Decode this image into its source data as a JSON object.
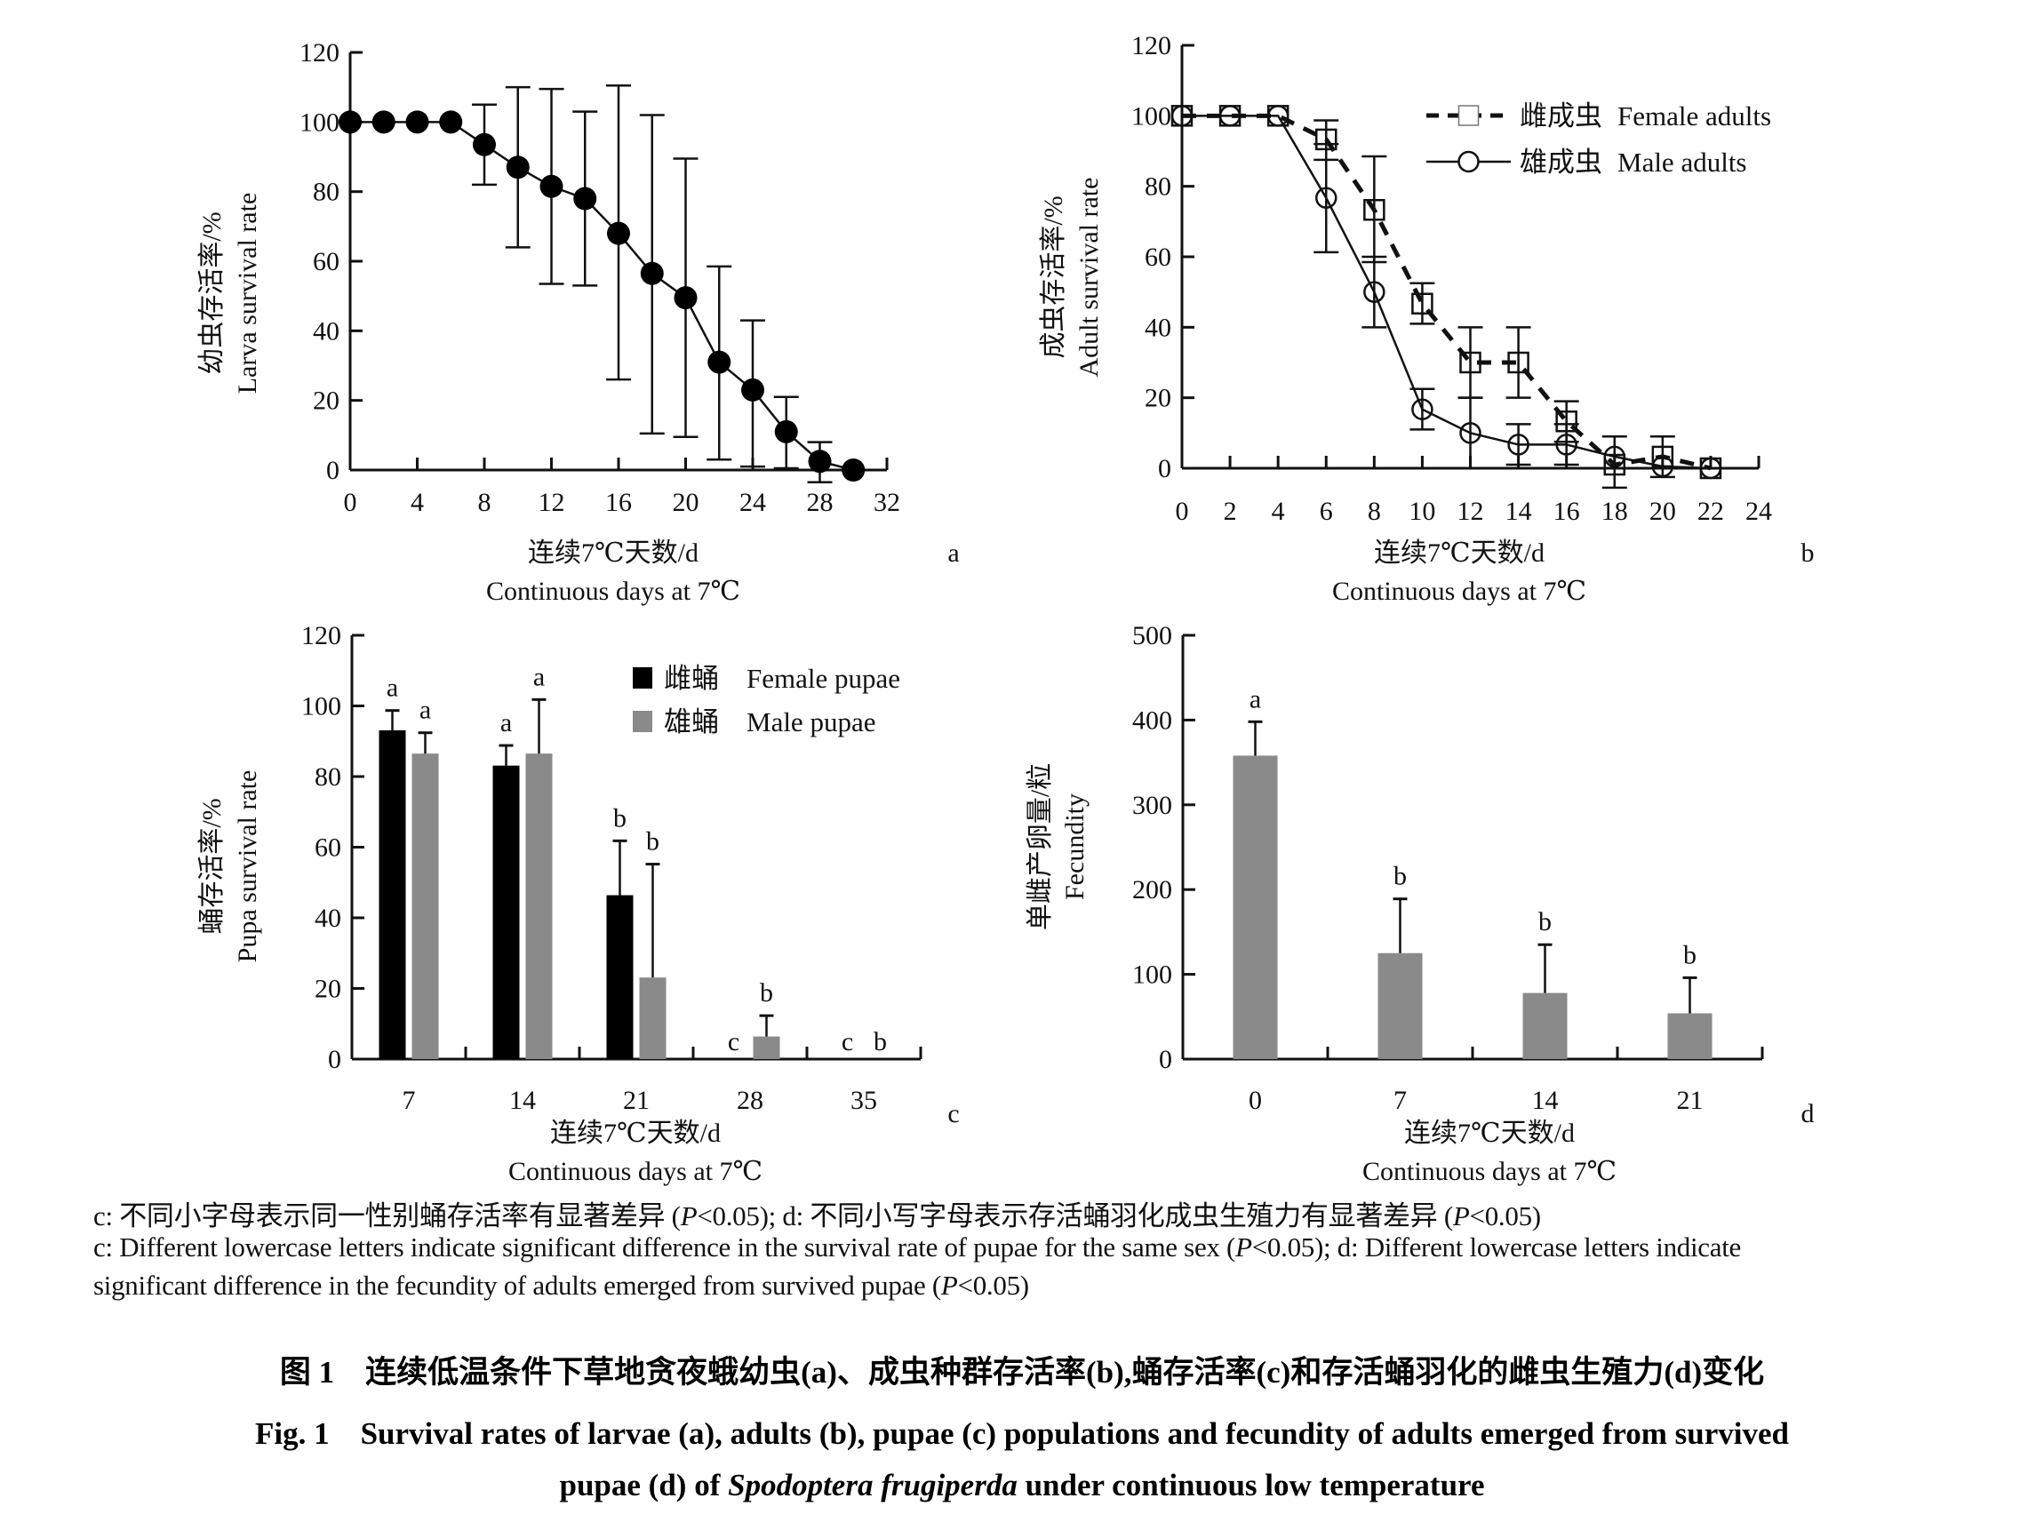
{
  "chart_data": [
    {
      "id": "a",
      "panel_label": "a",
      "type": "line",
      "title": "",
      "ylabel_cn": "幼虫存活率/%",
      "ylabel_en": "Larva survival rate",
      "xlabel_cn": "连续7℃天数/d",
      "xlabel_en": "Continuous days at 7℃",
      "xlim": [
        0,
        32
      ],
      "ylim": [
        0,
        120
      ],
      "xticks": [
        0,
        4,
        8,
        12,
        16,
        20,
        24,
        28,
        32
      ],
      "yticks": [
        0,
        20,
        40,
        60,
        80,
        100,
        120
      ],
      "grid": false,
      "series": [
        {
          "name": "Larva",
          "marker": "filled-circle",
          "x": [
            0,
            2,
            4,
            6,
            8,
            10,
            12,
            14,
            16,
            18,
            20,
            22,
            24,
            26,
            28,
            30
          ],
          "y": [
            100,
            100,
            100,
            100,
            93.5,
            87,
            81.5,
            78,
            68,
            56.5,
            49.5,
            31,
            23,
            11,
            2.5,
            0
          ],
          "err_upper": [
            null,
            null,
            null,
            null,
            105,
            110,
            109.5,
            103,
            110.5,
            102,
            89.5,
            58.5,
            43,
            21,
            8,
            null
          ],
          "err_lower": [
            null,
            null,
            null,
            null,
            82,
            64,
            53.5,
            53,
            26,
            10.5,
            9.5,
            3,
            1,
            0.5,
            -3.5,
            null
          ]
        }
      ]
    },
    {
      "id": "b",
      "panel_label": "b",
      "type": "line",
      "title": "",
      "ylabel_cn": "成虫存活率/%",
      "ylabel_en": "Adult survival rate",
      "xlabel_cn": "连续7℃天数/d",
      "xlabel_en": "Continuous days at 7℃",
      "xlim": [
        0,
        24
      ],
      "ylim": [
        0,
        120
      ],
      "xticks": [
        0,
        2,
        4,
        6,
        8,
        10,
        12,
        14,
        16,
        18,
        20,
        22,
        24
      ],
      "yticks": [
        0,
        20,
        40,
        60,
        80,
        100,
        120
      ],
      "grid": false,
      "legend_position": "top-right",
      "series": [
        {
          "name": "Female adults",
          "name_cn": "雌成虫",
          "marker": "open-square",
          "line": "dashed",
          "x": [
            0,
            2,
            4,
            6,
            8,
            10,
            12,
            14,
            16,
            18,
            20,
            22
          ],
          "y": [
            100,
            100,
            100,
            93.3,
            73.3,
            46.7,
            30,
            30,
            13.3,
            1,
            3.3,
            0
          ],
          "err_upper": [
            null,
            null,
            null,
            98.7,
            88.5,
            52.5,
            40,
            40,
            19,
            9,
            9,
            null
          ],
          "err_lower": [
            null,
            null,
            null,
            87.5,
            58.5,
            41,
            20,
            20,
            7.5,
            -5.5,
            -2.5,
            null
          ]
        },
        {
          "name": "Male adults",
          "name_cn": "雄成虫",
          "marker": "open-circle",
          "line": "solid",
          "x": [
            0,
            2,
            4,
            6,
            8,
            10,
            12,
            14,
            16,
            18,
            20,
            22
          ],
          "y": [
            100,
            100,
            100,
            76.7,
            50,
            16.7,
            10,
            6.7,
            6.7,
            3.3,
            0.5,
            0
          ],
          "err_upper": [
            null,
            null,
            null,
            92,
            60,
            22.5,
            20,
            12.5,
            12.5,
            null,
            null,
            null
          ],
          "err_lower": [
            null,
            null,
            null,
            61.3,
            40,
            11,
            0,
            1,
            1,
            null,
            null,
            null
          ]
        }
      ]
    },
    {
      "id": "c",
      "panel_label": "c",
      "type": "bar",
      "title": "",
      "ylabel_cn": "蛹存活率/%",
      "ylabel_en": "Pupa survival rate",
      "xlabel_cn": "连续7℃天数/d",
      "xlabel_en": "Continuous days at 7℃",
      "categories": [
        "7",
        "14",
        "21",
        "28",
        "35"
      ],
      "ylim": [
        0,
        120
      ],
      "yticks": [
        0,
        20,
        40,
        60,
        80,
        100,
        120
      ],
      "grid": false,
      "legend_position": "top-right",
      "series": [
        {
          "name": "Female pupae",
          "name_cn": "雌蛹",
          "color": "#000000",
          "values": [
            93.1,
            83.1,
            46.4,
            0,
            0
          ],
          "err_upper": [
            98.7,
            88.8,
            61.8,
            null,
            null
          ],
          "sig": [
            "a",
            "a",
            "b",
            "c",
            "c"
          ]
        },
        {
          "name": "Male pupae",
          "name_cn": "雄蛹",
          "color": "#8a8a8a",
          "values": [
            86.5,
            86.5,
            23.1,
            6.4,
            0
          ],
          "err_upper": [
            92.4,
            101.8,
            55.2,
            12.3,
            null
          ],
          "sig": [
            "a",
            "a",
            "b",
            "b",
            "b"
          ]
        }
      ]
    },
    {
      "id": "d",
      "panel_label": "d",
      "type": "bar",
      "title": "",
      "ylabel_cn": "单雌产卵量/粒",
      "ylabel_en": "Fecundity",
      "xlabel_cn": "连续7℃天数/d",
      "xlabel_en": "Continuous days at 7℃",
      "categories": [
        "0",
        "7",
        "14",
        "21"
      ],
      "ylim": [
        0,
        500
      ],
      "yticks": [
        0,
        100,
        200,
        300,
        400,
        500
      ],
      "grid": false,
      "series": [
        {
          "name": "Fecundity",
          "color": "#8a8a8a",
          "values": [
            358,
            125,
            78,
            54
          ],
          "err_upper": [
            398,
            189,
            135,
            96
          ],
          "sig": [
            "a",
            "b",
            "b",
            "b"
          ]
        }
      ]
    }
  ],
  "notes": {
    "line1_pre": "c: 不同小字母表示同一性别蛹存活率有显著差异 (",
    "line1_p": "P",
    "line1_mid": "<0.05); d: 不同小写字母表示存活蛹羽化成虫生殖力有显著差异 (",
    "line1_p2": "P",
    "line1_post": "<0.05)",
    "line2_pre": "c: Different lowercase letters indicate significant difference in the survival rate of pupae for the same sex (",
    "line2_p": "P",
    "line2_post": "<0.05); d: Different lowercase letters indicate",
    "line3_pre": "significant difference in the fecundity of adults emerged from survived pupae (",
    "line3_p": "P",
    "line3_post": "<0.05)"
  },
  "caption": {
    "cn": "图 1　连续低温条件下草地贪夜蛾幼虫(a)、成虫种群存活率(b),蛹存活率(c)和存活蛹羽化的雌虫生殖力(d)变化",
    "en1": "Fig. 1　Survival rates of larvae (a), adults (b), pupae (c) populations and fecundity of adults emerged from survived",
    "en2_pre": "pupae (d) of ",
    "en2_italic": "Spodoptera frugiperda",
    "en2_post": " under continuous low temperature"
  }
}
